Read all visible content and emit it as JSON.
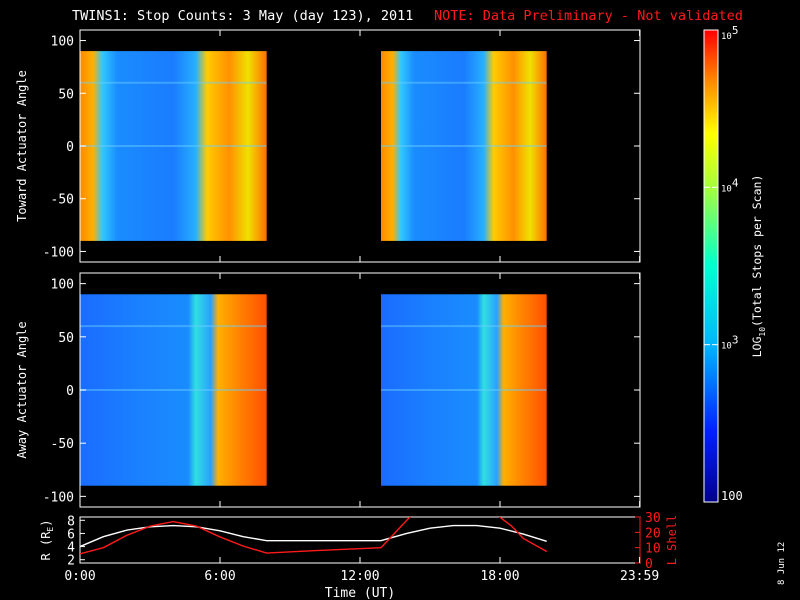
{
  "header": {
    "title": "TWINS1: Stop Counts:  3 May (day 123), 2011",
    "note": "NOTE: Data Preliminary - Not validated"
  },
  "footer": {
    "date_stamp": "8 Jun 12"
  },
  "colors": {
    "background": "#000000",
    "axes": "#ffffff",
    "note": "#ff1a1a",
    "r_line": "#ffffff",
    "lshell_line": "#ff1a1a"
  },
  "chart_data": [
    {
      "type": "heatmap",
      "ylabel": "Toward Actuator Angle",
      "ylim": [
        -110,
        110
      ],
      "yticks": [
        100,
        50,
        0,
        -50,
        -100
      ],
      "xlim": [
        0,
        24
      ],
      "coverage": [
        [
          0,
          8
        ],
        [
          12.9,
          20
        ]
      ],
      "value_range": [
        2.0,
        5.0
      ],
      "colorscale": "log"
    },
    {
      "type": "heatmap",
      "ylabel": "Away Actuator Angle",
      "ylim": [
        -110,
        110
      ],
      "yticks": [
        100,
        50,
        0,
        -50,
        -100
      ],
      "xlim": [
        0,
        24
      ],
      "coverage": [
        [
          0,
          8
        ],
        [
          12.9,
          20
        ]
      ],
      "value_range": [
        2.0,
        5.0
      ],
      "colorscale": "log"
    },
    {
      "type": "line",
      "xlabel": "Time (UT)",
      "xlim": [
        0,
        24
      ],
      "xticks": [
        0,
        6,
        12,
        18,
        23.983
      ],
      "xtick_labels": [
        "0:00",
        "6:00",
        "12:00",
        "18:00",
        "23:59"
      ],
      "left_axis": {
        "label": "R (R",
        "label_sub": "E",
        "label_end": ")",
        "ylim": [
          1.5,
          8.5
        ],
        "yticks": [
          2,
          4,
          6,
          8
        ],
        "ytick_labels": [
          "2",
          "4",
          "6",
          "8"
        ]
      },
      "right_axis": {
        "label": "L Shell",
        "ylim": [
          0,
          30
        ],
        "yticks": [
          0,
          10,
          20,
          30
        ],
        "ytick_labels": [
          "0",
          "10",
          "20",
          "30"
        ]
      },
      "series": [
        {
          "axis": "left",
          "x": [
            0,
            1,
            2,
            3,
            4,
            5,
            6,
            7,
            8,
            10,
            12.9,
            14,
            15,
            16,
            17,
            18,
            19,
            20
          ],
          "y": [
            4.0,
            5.5,
            6.5,
            7.0,
            7.2,
            7.0,
            6.4,
            5.5,
            4.9,
            4.9,
            4.9,
            6.0,
            6.8,
            7.2,
            7.2,
            6.8,
            5.9,
            4.8
          ]
        },
        {
          "axis": "right",
          "x": [
            0,
            1,
            2,
            3,
            4,
            5,
            6,
            7,
            8,
            10,
            12.9,
            14.2
          ],
          "y": [
            6.0,
            10.0,
            18.0,
            24.0,
            27.0,
            24.0,
            17.0,
            11.0,
            6.5,
            8.0,
            10.0,
            31.0
          ]
        },
        {
          "axis": "right",
          "x": [
            17.9,
            18.5,
            19,
            20
          ],
          "y": [
            31.0,
            24.0,
            16.0,
            7.5
          ]
        }
      ]
    }
  ],
  "colorbar": {
    "label": "LOG",
    "label_sub": "10",
    "label_rest": "(Total Stops per Scan)",
    "range": [
      2.0,
      5.0
    ],
    "ticks": [
      {
        "value": 5,
        "base": "10",
        "exp": "5"
      },
      {
        "value": 4,
        "base": "10",
        "exp": "4"
      },
      {
        "value": 3,
        "base": "10",
        "exp": "3"
      },
      {
        "value": 2,
        "base": "100",
        "exp": ""
      }
    ]
  }
}
